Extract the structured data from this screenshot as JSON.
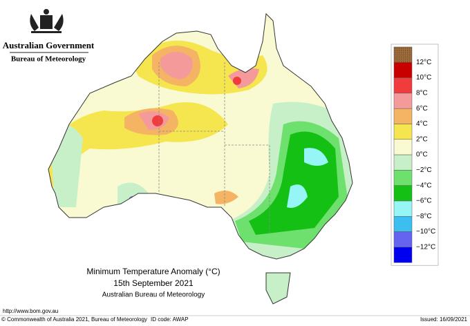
{
  "header": {
    "government": "Australian Government",
    "agency": "Bureau of Meteorology"
  },
  "map": {
    "title": "Minimum Temperature Anomaly (°C)",
    "date": "15th September 2021",
    "source": "Australian Bureau of Meteorology"
  },
  "legend": [
    {
      "label": "12°C",
      "color": "#9c6b3c"
    },
    {
      "label": "10°C",
      "color": "#c80000"
    },
    {
      "label": "8°C",
      "color": "#f03c3c"
    },
    {
      "label": "6°C",
      "color": "#f59a9a"
    },
    {
      "label": "4°C",
      "color": "#f5b464"
    },
    {
      "label": "2°C",
      "color": "#f5e650"
    },
    {
      "label": "0°C",
      "color": "#fafad2"
    },
    {
      "label": "−2°C",
      "color": "#c8f0c8"
    },
    {
      "label": "−4°C",
      "color": "#6ee06e"
    },
    {
      "label": "−6°C",
      "color": "#14c014"
    },
    {
      "label": "−8°C",
      "color": "#96f5f5"
    },
    {
      "label": "−10°C",
      "color": "#3cbef0"
    },
    {
      "label": "−12°C",
      "color": "#6464f0"
    },
    {
      "color": "#0000f0"
    }
  ],
  "footer": {
    "url": "http://www.bom.gov.au",
    "copyright": "© Commonwealth of Australia 2021, Bureau of Meteorology",
    "id_code": "ID code: AWAP",
    "issued": "Issued: 16/09/2021"
  }
}
